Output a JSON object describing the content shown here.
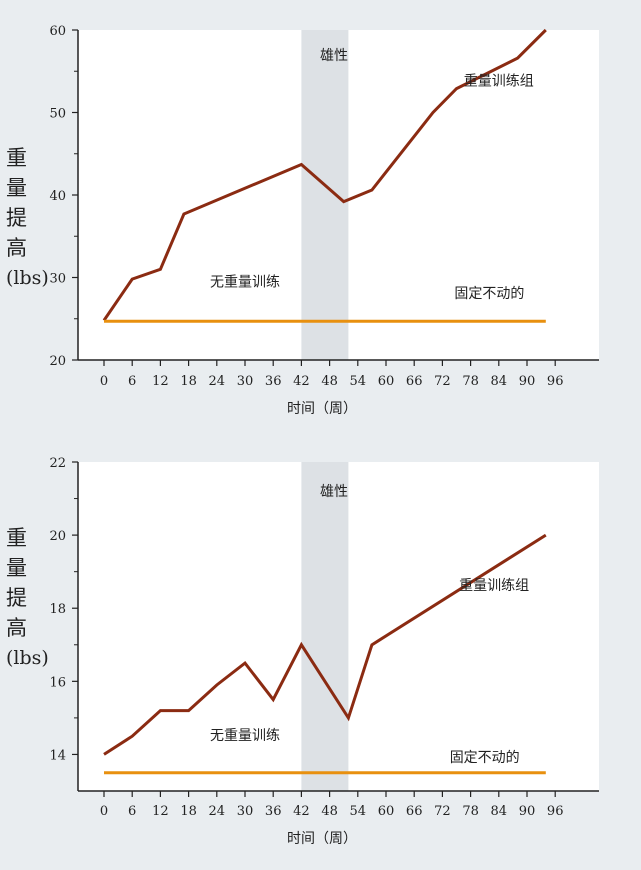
{
  "colors": {
    "background": "#e9edf0",
    "plot_background": "#ffffff",
    "trained_line": "#8b2b12",
    "control_line": "#e8900f",
    "shade": "#dde1e5"
  },
  "chart_data": [
    {
      "type": "line",
      "title": "雄性",
      "xlabel": "时间（周）",
      "ylabel_chars": [
        "重",
        "量",
        "提",
        "高"
      ],
      "ylabel_unit": "(lbs)",
      "ylim": [
        20,
        60
      ],
      "yticks": [
        20,
        30,
        40,
        50,
        60
      ],
      "xlim": [
        -4,
        101
      ],
      "xticks": [
        0,
        6,
        12,
        18,
        24,
        30,
        36,
        42,
        48,
        54,
        60,
        66,
        72,
        78,
        84,
        90,
        96
      ],
      "shaded_range": [
        42,
        52
      ],
      "series": [
        {
          "name": "重量训练组",
          "color": "#8b2b12",
          "x": [
            0,
            6,
            12,
            17,
            42,
            51,
            57,
            70,
            75,
            88,
            94
          ],
          "y": [
            24.8,
            29.8,
            31.0,
            37.7,
            43.7,
            39.2,
            40.6,
            50.0,
            52.9,
            56.6,
            60.0
          ]
        },
        {
          "name": "无重量训练",
          "color": "#e8900f",
          "x": [
            0,
            94
          ],
          "y": [
            24.7,
            24.7
          ]
        }
      ],
      "annotations": [
        {
          "text": "无重量训练",
          "x": 30,
          "y": 28.9
        },
        {
          "text": "固定不动的",
          "x": 82,
          "y": 27.5
        },
        {
          "text": "重量训练组",
          "x": 84,
          "y": 53.3
        }
      ]
    },
    {
      "type": "line",
      "title": "雄性",
      "xlabel": "时间（周）",
      "ylabel_chars": [
        "重",
        "量",
        "提",
        "高"
      ],
      "ylabel_unit": "(lbs)",
      "ylim": [
        13,
        22
      ],
      "yticks": [
        14,
        16,
        18,
        20,
        22
      ],
      "xlim": [
        -4,
        101
      ],
      "xticks": [
        0,
        6,
        12,
        18,
        24,
        30,
        36,
        42,
        48,
        54,
        60,
        66,
        72,
        78,
        84,
        90,
        96
      ],
      "shaded_range": [
        42,
        52
      ],
      "series": [
        {
          "name": "重量训练组",
          "color": "#8b2b12",
          "x": [
            0,
            6,
            12,
            18,
            24,
            30,
            36,
            42,
            52,
            57,
            94
          ],
          "y": [
            14.0,
            14.5,
            15.2,
            15.2,
            15.9,
            16.5,
            15.5,
            17.0,
            15.0,
            17.0,
            20.0
          ]
        },
        {
          "name": "无重量训练",
          "color": "#e8900f",
          "x": [
            0,
            94
          ],
          "y": [
            13.5,
            13.5
          ]
        }
      ],
      "annotations": [
        {
          "text": "无重量训练",
          "x": 30,
          "y": 14.4
        },
        {
          "text": "固定不动的",
          "x": 81,
          "y": 13.8
        },
        {
          "text": "重量训练组",
          "x": 83,
          "y": 18.5
        }
      ]
    }
  ]
}
